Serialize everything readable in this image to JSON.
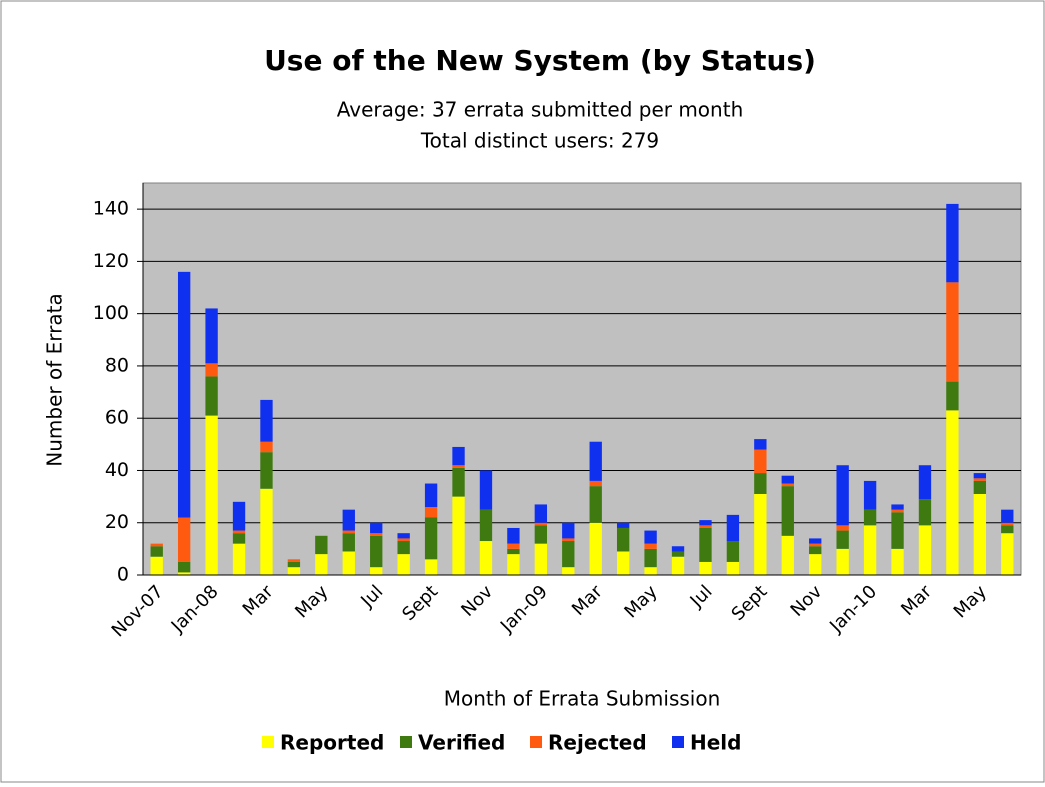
{
  "chart_data": {
    "type": "stacked_bar",
    "title": "Use of the New System (by Status)",
    "subtitle": [
      "Average: 37 errata submitted per month",
      "Total distinct users: 279"
    ],
    "x_label": "Month of Errata Submission",
    "y_label": "Number of Errata",
    "categories": [
      "Nov-07",
      null,
      "Jan-08",
      null,
      "Mar",
      null,
      "May",
      null,
      "Jul",
      null,
      "Sept",
      null,
      "Nov",
      null,
      "Jan-09",
      null,
      "Mar",
      null,
      "May",
      null,
      "Jul",
      null,
      "Sept",
      null,
      "Nov",
      null,
      "Jan-10",
      null,
      "Mar",
      null,
      "May",
      null
    ],
    "series": [
      {
        "name": "Reported",
        "color": "#ffff00",
        "values": [
          7,
          1,
          61,
          12,
          33,
          3,
          8,
          9,
          3,
          8,
          6,
          30,
          13,
          8,
          12,
          3,
          20,
          9,
          3,
          7,
          5,
          5,
          31,
          15,
          8,
          10,
          19,
          10,
          19,
          63,
          31,
          16
        ]
      },
      {
        "name": "Verified",
        "color": "#3f7a10",
        "values": [
          4,
          4,
          15,
          4,
          14,
          2,
          7,
          7,
          12,
          5,
          16,
          11,
          12,
          2,
          7,
          10,
          14,
          9,
          7,
          2,
          13,
          8,
          8,
          19,
          3,
          7,
          6,
          14,
          10,
          11,
          5,
          3
        ]
      },
      {
        "name": "Rejected",
        "color": "#ff5a10",
        "values": [
          1,
          17,
          5,
          1,
          4,
          1,
          0,
          1,
          1,
          1,
          4,
          1,
          0,
          2,
          1,
          1,
          2,
          0,
          2,
          0,
          1,
          0,
          9,
          1,
          1,
          2,
          0,
          1,
          0,
          38,
          1,
          1
        ]
      },
      {
        "name": "Held",
        "color": "#1030f0",
        "values": [
          0,
          94,
          21,
          11,
          16,
          0,
          0,
          8,
          4,
          2,
          9,
          7,
          15,
          6,
          7,
          6,
          15,
          2,
          5,
          2,
          2,
          10,
          4,
          3,
          2,
          23,
          11,
          2,
          13,
          30,
          2,
          5
        ]
      }
    ],
    "ylim": [
      0,
      150
    ],
    "yticks": [
      0,
      20,
      40,
      60,
      80,
      100,
      120,
      140
    ],
    "grid": true,
    "plot_background": "#c0c0c0",
    "legend": "bottom"
  }
}
